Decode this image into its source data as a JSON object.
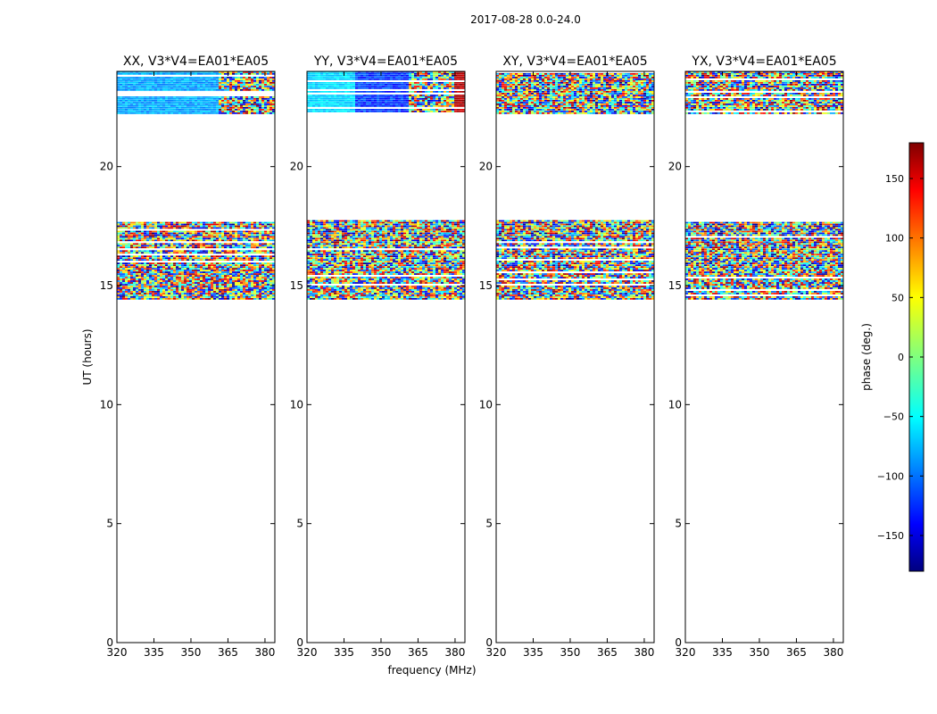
{
  "figure": {
    "suptitle": "2017-08-28 0.0-24.0",
    "xlabel": "frequency (MHz)",
    "ylabel": "UT (hours)",
    "colorbar_label": "phase (deg.)"
  },
  "chart_data": {
    "type": "heatmap",
    "x_ticks": [
      320,
      335,
      350,
      365,
      380
    ],
    "x_tick_labels": [
      "320",
      "335",
      "350",
      "365",
      "380"
    ],
    "y_ticks": [
      0,
      5,
      10,
      15,
      20
    ],
    "y_tick_labels": [
      "0",
      "5",
      "10",
      "15",
      "20"
    ],
    "xlim": [
      320,
      384
    ],
    "ylim": [
      0,
      24
    ],
    "colorbar": {
      "colormap": "jet",
      "range": [
        -180,
        180
      ],
      "ticks": [
        -150,
        -100,
        -50,
        0,
        50,
        100,
        150
      ],
      "tick_labels": [
        "−150",
        "−100",
        "−50",
        "0",
        "50",
        "100",
        "150"
      ]
    },
    "data_blocks_ut": [
      [
        14.4,
        17.75
      ],
      [
        22.2,
        24.0
      ]
    ],
    "panels": [
      {
        "title": "XX, V3*V4=EA01*EA05",
        "upper_block": "blue_band"
      },
      {
        "title": "YY, V3*V4=EA01*EA05",
        "upper_block": "cyan_to_red"
      },
      {
        "title": "XY, V3*V4=EA01*EA05",
        "upper_block": "noise"
      },
      {
        "title": "YX, V3*V4=EA01*EA05",
        "upper_block": "noise"
      }
    ]
  }
}
